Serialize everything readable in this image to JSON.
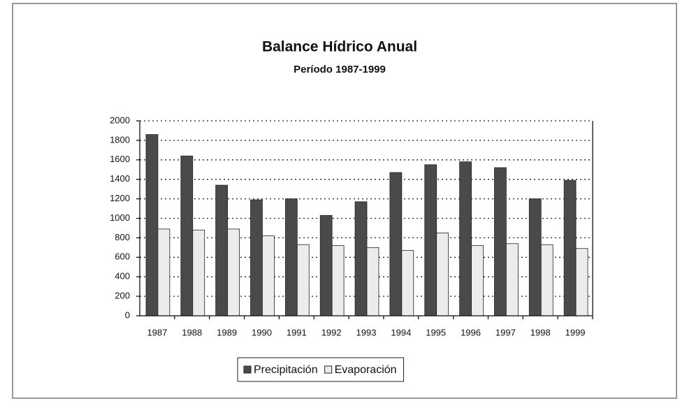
{
  "chart_data": {
    "type": "bar",
    "title": "Balance Hídrico Anual",
    "subtitle": "Período 1987-1999",
    "categories": [
      "1987",
      "1988",
      "1989",
      "1990",
      "1991",
      "1992",
      "1993",
      "1994",
      "1995",
      "1996",
      "1997",
      "1998",
      "1999"
    ],
    "series": [
      {
        "name": "Precipitación",
        "color": "#4a4a4a",
        "values": [
          1860,
          1640,
          1340,
          1190,
          1200,
          1030,
          1170,
          1470,
          1550,
          1580,
          1520,
          1200,
          1390
        ]
      },
      {
        "name": "Evaporación",
        "color": "#ececec",
        "values": [
          890,
          880,
          890,
          820,
          730,
          720,
          700,
          670,
          850,
          720,
          740,
          730,
          690
        ]
      }
    ],
    "ylim": [
      0,
      2000
    ],
    "yticks": [
      0,
      200,
      400,
      600,
      800,
      1000,
      1200,
      1400,
      1600,
      1800,
      2000
    ],
    "grid": true,
    "legend": "bottom"
  }
}
